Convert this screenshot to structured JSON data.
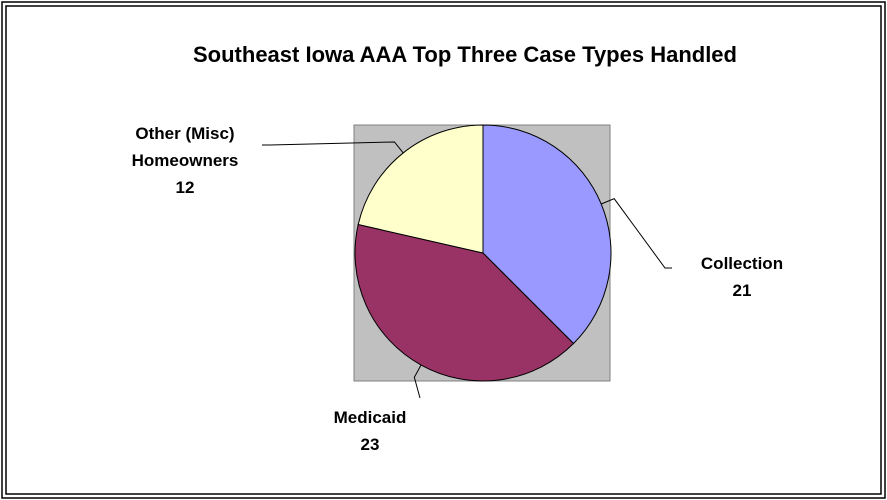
{
  "chart_data": {
    "type": "pie",
    "title": "Southeast Iowa AAA Top Three Case Types Handled",
    "categories": [
      "Collection",
      "Medicaid",
      "Other (Misc) Homeowners"
    ],
    "values": [
      21,
      23,
      12
    ],
    "colors": [
      "#9999ff",
      "#993366",
      "#ffffcc"
    ]
  }
}
